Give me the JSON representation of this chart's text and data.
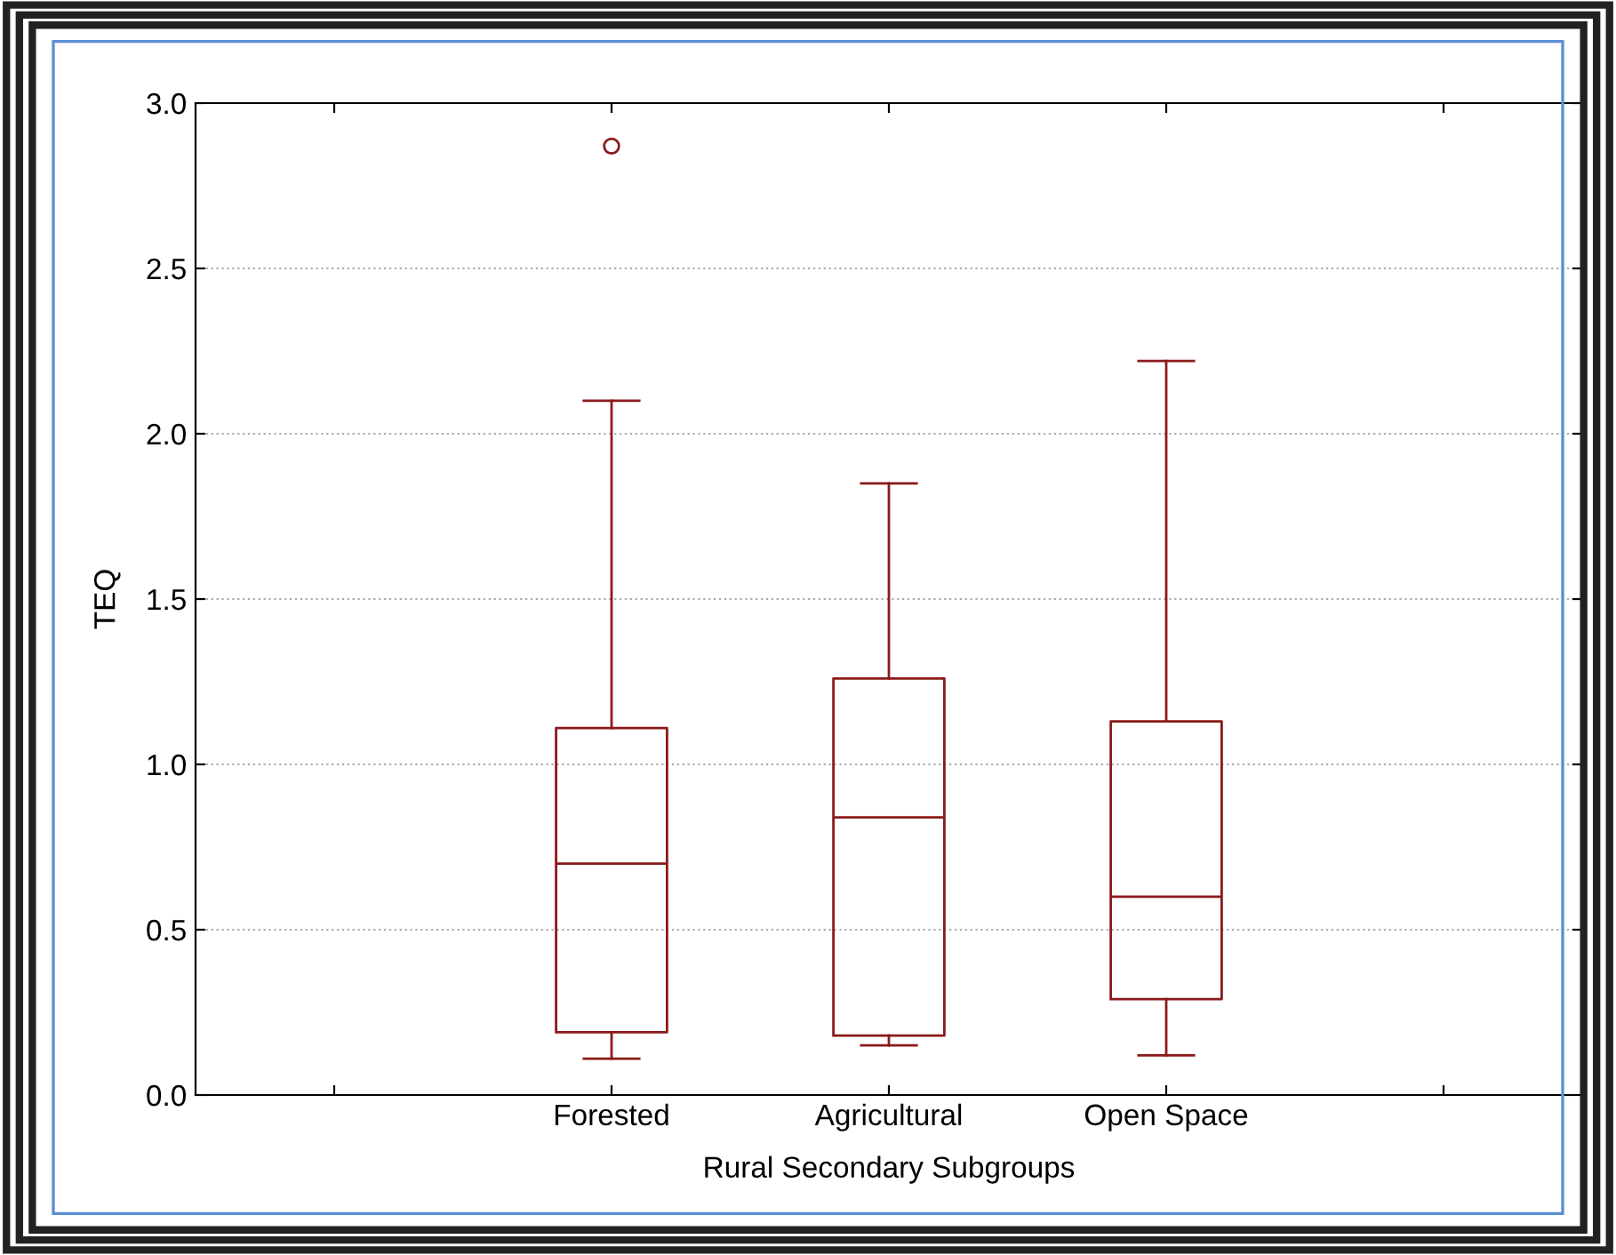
{
  "chart_data": {
    "type": "box",
    "xlabel": "Rural Secondary Subgroups",
    "ylabel": "TEQ",
    "categories": [
      null,
      "Forested",
      "Agricultural",
      "Open Space",
      null
    ],
    "boxes": [
      null,
      {
        "low": 0.11,
        "q1": 0.19,
        "median": 0.7,
        "q3": 1.11,
        "high": 2.1,
        "outliers": [
          2.87
        ]
      },
      {
        "low": 0.15,
        "q1": 0.18,
        "median": 0.84,
        "q3": 1.26,
        "high": 1.85
      },
      {
        "low": 0.12,
        "q1": 0.29,
        "median": 0.6,
        "q3": 1.13,
        "high": 2.22
      },
      null
    ],
    "color": "#8b1a1a",
    "ylim": [
      0,
      3.0
    ],
    "yticks": [
      {
        "value": 0,
        "label": "0.0"
      },
      0.5,
      {
        "value": 1,
        "label": "1.0"
      },
      1.5,
      {
        "value": 2,
        "label": "2.0"
      },
      2.5,
      {
        "value": 3,
        "label": "3.0"
      }
    ],
    "grid": "y"
  }
}
